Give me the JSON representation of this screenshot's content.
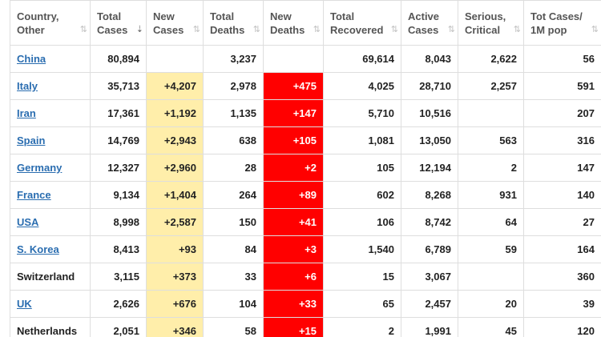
{
  "headers": [
    {
      "line1": "Country,",
      "line2": "Other",
      "sort": "⇅",
      "active": false
    },
    {
      "line1": "Total",
      "line2": "Cases",
      "sort": "⇣",
      "active": true
    },
    {
      "line1": "New",
      "line2": "Cases",
      "sort": "⇅",
      "active": false
    },
    {
      "line1": "Total",
      "line2": "Deaths",
      "sort": "⇅",
      "active": false
    },
    {
      "line1": "New",
      "line2": "Deaths",
      "sort": "⇅",
      "active": false
    },
    {
      "line1": "Total",
      "line2": "Recovered",
      "sort": "⇅",
      "active": false
    },
    {
      "line1": "Active",
      "line2": "Cases",
      "sort": "⇅",
      "active": false
    },
    {
      "line1": "Serious,",
      "line2": "Critical",
      "sort": "⇅",
      "active": false
    },
    {
      "line1": "Tot Cases/",
      "line2": "1M pop",
      "sort": "⇅",
      "active": false
    }
  ],
  "rows": [
    {
      "country": "China",
      "link": true,
      "total_cases": "80,894",
      "new_cases": "",
      "total_deaths": "3,237",
      "new_deaths": "",
      "total_recovered": "69,614",
      "active_cases": "8,043",
      "serious_critical": "2,622",
      "per_million": "56"
    },
    {
      "country": "Italy",
      "link": true,
      "total_cases": "35,713",
      "new_cases": "+4,207",
      "total_deaths": "2,978",
      "new_deaths": "+475",
      "total_recovered": "4,025",
      "active_cases": "28,710",
      "serious_critical": "2,257",
      "per_million": "591"
    },
    {
      "country": "Iran",
      "link": true,
      "total_cases": "17,361",
      "new_cases": "+1,192",
      "total_deaths": "1,135",
      "new_deaths": "+147",
      "total_recovered": "5,710",
      "active_cases": "10,516",
      "serious_critical": "",
      "per_million": "207"
    },
    {
      "country": "Spain",
      "link": true,
      "total_cases": "14,769",
      "new_cases": "+2,943",
      "total_deaths": "638",
      "new_deaths": "+105",
      "total_recovered": "1,081",
      "active_cases": "13,050",
      "serious_critical": "563",
      "per_million": "316"
    },
    {
      "country": "Germany",
      "link": true,
      "total_cases": "12,327",
      "new_cases": "+2,960",
      "total_deaths": "28",
      "new_deaths": "+2",
      "total_recovered": "105",
      "active_cases": "12,194",
      "serious_critical": "2",
      "per_million": "147"
    },
    {
      "country": "France",
      "link": true,
      "total_cases": "9,134",
      "new_cases": "+1,404",
      "total_deaths": "264",
      "new_deaths": "+89",
      "total_recovered": "602",
      "active_cases": "8,268",
      "serious_critical": "931",
      "per_million": "140"
    },
    {
      "country": "USA",
      "link": true,
      "total_cases": "8,998",
      "new_cases": "+2,587",
      "total_deaths": "150",
      "new_deaths": "+41",
      "total_recovered": "106",
      "active_cases": "8,742",
      "serious_critical": "64",
      "per_million": "27"
    },
    {
      "country": "S. Korea",
      "link": true,
      "total_cases": "8,413",
      "new_cases": "+93",
      "total_deaths": "84",
      "new_deaths": "+3",
      "total_recovered": "1,540",
      "active_cases": "6,789",
      "serious_critical": "59",
      "per_million": "164"
    },
    {
      "country": "Switzerland",
      "link": false,
      "total_cases": "3,115",
      "new_cases": "+373",
      "total_deaths": "33",
      "new_deaths": "+6",
      "total_recovered": "15",
      "active_cases": "3,067",
      "serious_critical": "",
      "per_million": "360"
    },
    {
      "country": "UK",
      "link": true,
      "total_cases": "2,626",
      "new_cases": "+676",
      "total_deaths": "104",
      "new_deaths": "+33",
      "total_recovered": "65",
      "active_cases": "2,457",
      "serious_critical": "20",
      "per_million": "39"
    },
    {
      "country": "Netherlands",
      "link": false,
      "total_cases": "2,051",
      "new_cases": "+346",
      "total_deaths": "58",
      "new_deaths": "+15",
      "total_recovered": "2",
      "active_cases": "1,991",
      "serious_critical": "45",
      "per_million": "120"
    }
  ],
  "colors": {
    "new_cases_bg": "#ffeeaa",
    "new_deaths_bg": "#ff0000",
    "link": "#2a6db0"
  }
}
